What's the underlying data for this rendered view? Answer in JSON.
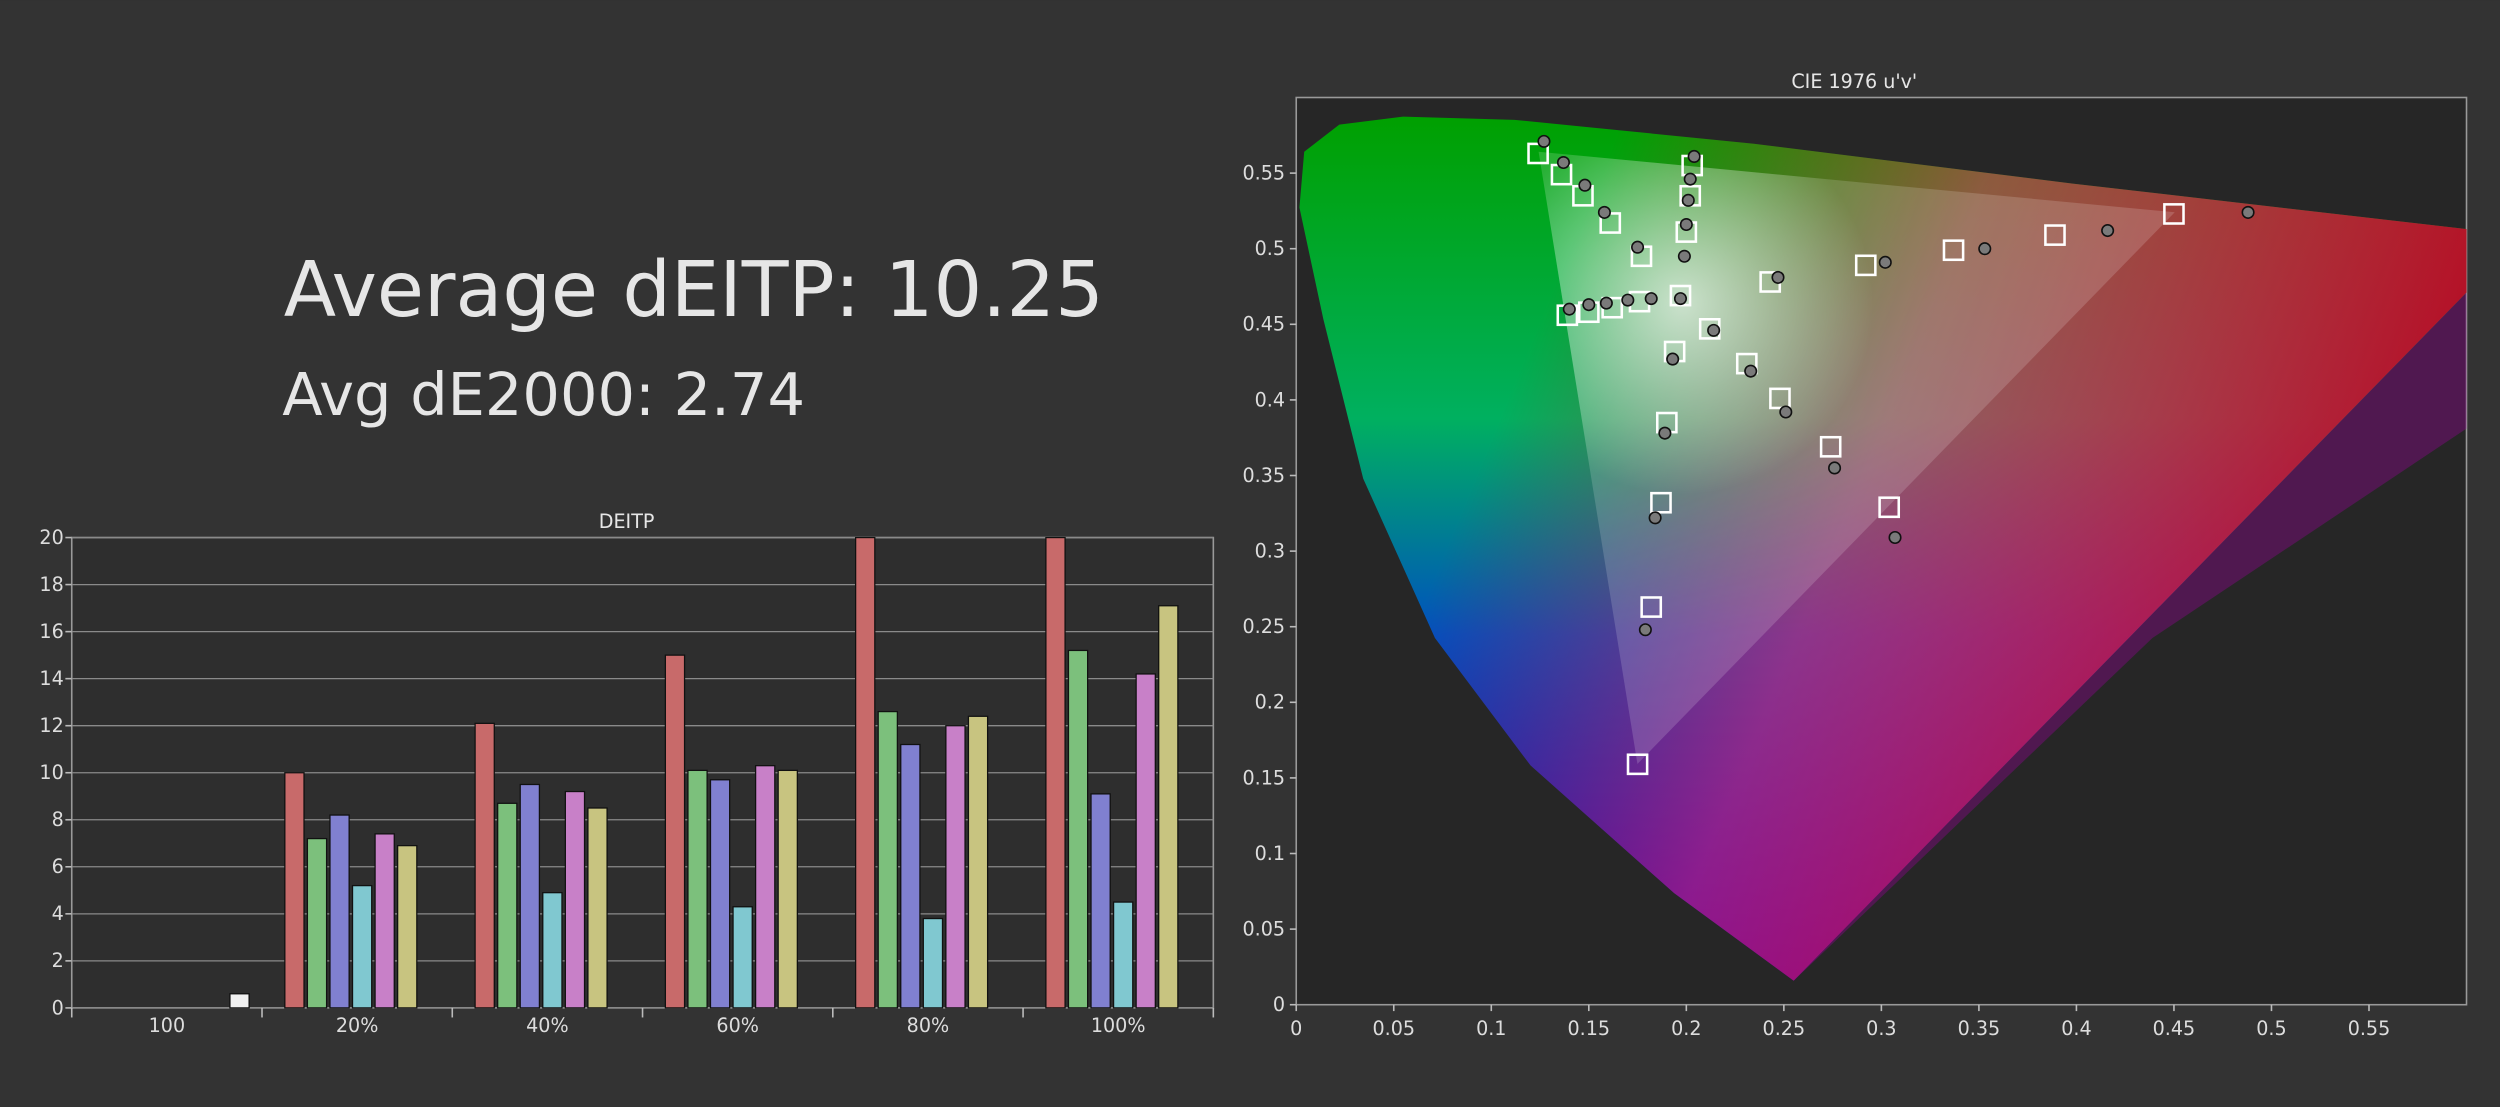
{
  "headline": [
    {
      "label": "Average dEITP:",
      "value": 10.25
    },
    {
      "label": "Avg dE2000:",
      "value": 2.74
    }
  ],
  "chart_data": [
    {
      "type": "bar",
      "title": "DEITP",
      "categories": [
        "100",
        "20%",
        "40%",
        "60%",
        "80%",
        "100%"
      ],
      "series": [
        {
          "color": "#c86a6a",
          "values": [
            null,
            10,
            12.1,
            15,
            20,
            20
          ]
        },
        {
          "color": "#7cc07c",
          "values": [
            null,
            7.2,
            8.7,
            10.1,
            12.6,
            15.2
          ]
        },
        {
          "color": "#8080d0",
          "values": [
            null,
            8.2,
            9.5,
            9.7,
            11.2,
            9.1
          ]
        },
        {
          "color": "#80c8d0",
          "values": [
            null,
            5.2,
            4.9,
            4.3,
            3.8,
            4.5
          ]
        },
        {
          "color": "#c880c8",
          "values": [
            null,
            7.4,
            9.2,
            10.3,
            12,
            14.2
          ]
        },
        {
          "color": "#c8c480",
          "values": [
            null,
            6.9,
            8.5,
            10.1,
            12.4,
            17.1
          ]
        },
        {
          "color": "#f0f0f0",
          "values": [
            0.6,
            null,
            null,
            null,
            null,
            null
          ]
        }
      ],
      "ylim": [
        0,
        20
      ],
      "yticks": [
        0,
        2,
        4,
        6,
        8,
        10,
        12,
        14,
        16,
        18,
        20
      ],
      "grid": true
    },
    {
      "type": "scatter",
      "title": "CIE 1976 u'v'",
      "xlim": [
        0,
        0.6
      ],
      "xticks": [
        0,
        0.05,
        0.1,
        0.15,
        0.2,
        0.25,
        0.3,
        0.35,
        0.4,
        0.45,
        0.5,
        0.55
      ],
      "ylim": [
        0,
        0.6
      ],
      "yticks": [
        0,
        0.05,
        0.1,
        0.15,
        0.2,
        0.25,
        0.3,
        0.35,
        0.4,
        0.45,
        0.5,
        0.55
      ],
      "series": [
        {
          "marker": "square",
          "color": "#ffffff",
          "x": [
            0.124,
            0.136,
            0.147,
            0.161,
            0.177,
            0.203,
            0.202,
            0.2,
            0.197,
            0.139,
            0.15,
            0.162,
            0.176,
            0.194,
            0.19,
            0.187,
            0.182,
            0.175,
            0.212,
            0.231,
            0.248,
            0.274,
            0.304,
            0.243,
            0.292,
            0.337,
            0.389,
            0.45
          ],
          "values": [
            0.563,
            0.549,
            0.535,
            0.517,
            0.495,
            0.555,
            0.535,
            0.511,
            0.469,
            0.456,
            0.458,
            0.461,
            0.465,
            0.432,
            0.385,
            0.332,
            0.263,
            0.159,
            0.447,
            0.424,
            0.401,
            0.369,
            0.329,
            0.478,
            0.489,
            0.499,
            0.509,
            0.523
          ]
        },
        {
          "marker": "circle",
          "color": "#7a7a7a",
          "x": [
            0.127,
            0.137,
            0.148,
            0.158,
            0.175,
            0.204,
            0.202,
            0.201,
            0.2,
            0.199,
            0.197,
            0.14,
            0.15,
            0.159,
            0.17,
            0.182,
            0.193,
            0.189,
            0.184,
            0.179,
            0.214,
            0.233,
            0.251,
            0.276,
            0.307,
            0.247,
            0.302,
            0.353,
            0.416,
            0.488
          ],
          "values": [
            0.571,
            0.557,
            0.542,
            0.524,
            0.501,
            0.561,
            0.546,
            0.532,
            0.516,
            0.495,
            0.467,
            0.46,
            0.463,
            0.464,
            0.466,
            0.467,
            0.427,
            0.378,
            0.322,
            0.248,
            0.446,
            0.419,
            0.392,
            0.355,
            0.309,
            0.481,
            0.491,
            0.5,
            0.512,
            0.524
          ]
        }
      ]
    }
  ]
}
